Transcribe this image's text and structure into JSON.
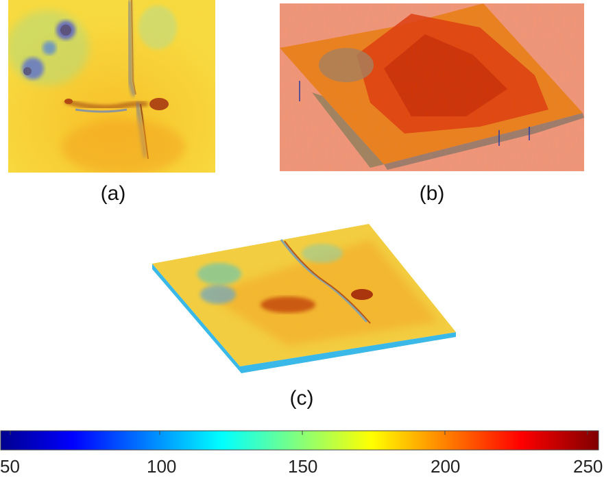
{
  "panels": [
    {
      "label": "(a)",
      "kind": "2d-map"
    },
    {
      "label": "(b)",
      "kind": "3d-surface-rough"
    },
    {
      "label": "(c)",
      "kind": "3d-surface-smooth"
    }
  ],
  "colorbar": {
    "colormap": "jet",
    "min": 45,
    "max": 255,
    "ticks": [
      "50",
      "100",
      "150",
      "200",
      "250"
    ],
    "colors": [
      "#00008f",
      "#0000ff",
      "#00ffff",
      "#ffff00",
      "#ff0000",
      "#800000"
    ]
  }
}
